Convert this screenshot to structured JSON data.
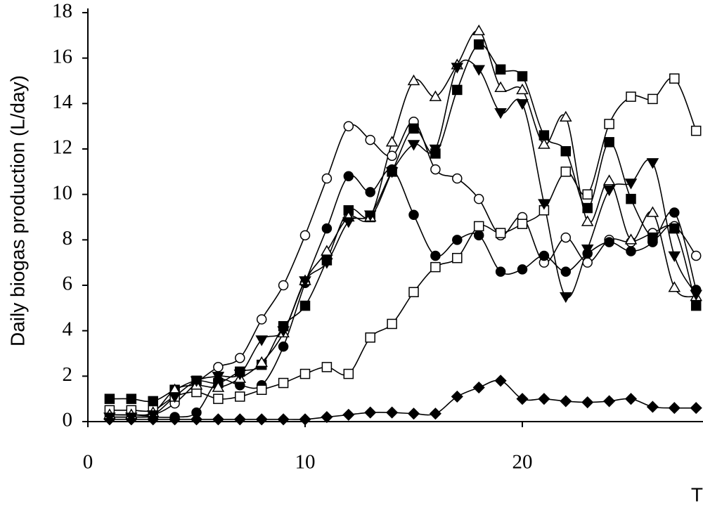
{
  "chart_data": {
    "type": "line",
    "y_label": "Daily biogas production (L/day)",
    "x_label": "T",
    "xlim": [
      0,
      28.3
    ],
    "xticks": [
      0,
      10,
      20
    ],
    "ylim": [
      0,
      18
    ],
    "yticks": [
      0,
      2,
      4,
      6,
      8,
      10,
      12,
      14,
      16,
      18
    ],
    "x": [
      1,
      2,
      3,
      4,
      5,
      6,
      7,
      8,
      9,
      10,
      11,
      12,
      13,
      14,
      15,
      16,
      17,
      18,
      19,
      20,
      21,
      22,
      23,
      24,
      25,
      26,
      27,
      28
    ],
    "series": [
      {
        "marker": "diamond",
        "color": "#000000",
        "marker_fill": "#000000",
        "values": [
          0.1,
          0.1,
          0.1,
          0.1,
          0.1,
          0.1,
          0.1,
          0.1,
          0.1,
          0.1,
          0.2,
          0.3,
          0.4,
          0.4,
          0.35,
          0.35,
          1.1,
          1.5,
          1.8,
          1.0,
          1.0,
          0.9,
          0.85,
          0.9,
          1.0,
          0.65,
          0.6,
          0.6
        ]
      },
      {
        "marker": "circle",
        "color": "#000000",
        "marker_fill": "#ffffff",
        "values": [
          0.3,
          0.3,
          0.3,
          0.8,
          1.7,
          2.4,
          2.8,
          4.5,
          6.0,
          8.2,
          10.7,
          13.0,
          12.4,
          11.7,
          13.2,
          11.1,
          10.7,
          9.8,
          8.2,
          9.0,
          7.0,
          8.1,
          7.0,
          8.0,
          7.9,
          8.3,
          8.6,
          7.3
        ]
      },
      {
        "marker": "circle",
        "color": "#000000",
        "marker_fill": "#000000",
        "values": [
          0.2,
          0.2,
          0.2,
          0.2,
          0.4,
          1.8,
          1.6,
          1.6,
          3.3,
          6.1,
          8.5,
          10.8,
          10.1,
          11.1,
          9.1,
          7.3,
          8.0,
          8.2,
          6.6,
          6.7,
          7.3,
          6.6,
          7.4,
          7.9,
          7.5,
          7.9,
          9.2,
          5.8
        ]
      },
      {
        "marker": "square",
        "color": "#000000",
        "marker_fill": "#ffffff",
        "values": [
          0.5,
          0.5,
          0.5,
          1.1,
          1.3,
          1.0,
          1.1,
          1.4,
          1.7,
          2.1,
          2.4,
          2.1,
          3.7,
          4.3,
          5.7,
          6.8,
          7.2,
          8.6,
          8.3,
          8.7,
          9.3,
          11.0,
          10.0,
          13.1,
          14.3,
          14.2,
          15.1,
          12.8
        ]
      },
      {
        "marker": "square",
        "color": "#000000",
        "marker_fill": "#000000",
        "values": [
          1.0,
          1.0,
          0.9,
          1.4,
          1.8,
          1.7,
          2.2,
          2.5,
          4.2,
          5.1,
          7.1,
          9.3,
          9.0,
          11.0,
          12.9,
          11.8,
          14.6,
          16.6,
          15.5,
          15.2,
          12.6,
          11.9,
          9.4,
          12.3,
          9.8,
          8.1,
          8.5,
          5.1
        ]
      },
      {
        "marker": "triangle-up",
        "color": "#000000",
        "marker_fill": "#ffffff",
        "values": [
          0.3,
          0.3,
          0.4,
          1.4,
          1.6,
          1.5,
          1.9,
          2.6,
          3.9,
          6.2,
          7.5,
          9.0,
          9.0,
          12.3,
          15.0,
          14.3,
          15.7,
          17.2,
          14.7,
          14.6,
          12.2,
          13.4,
          8.8,
          10.6,
          8.0,
          9.2,
          5.9,
          5.5
        ]
      },
      {
        "marker": "triangle-down",
        "color": "#000000",
        "marker_fill": "#000000",
        "values": [
          0.2,
          0.2,
          0.3,
          1.1,
          1.8,
          2.0,
          2.1,
          3.6,
          4.0,
          6.2,
          7.0,
          8.8,
          9.1,
          11.0,
          12.2,
          12.0,
          15.6,
          15.5,
          13.6,
          14.0,
          9.6,
          5.5,
          7.6,
          10.2,
          10.5,
          11.4,
          7.3,
          5.6
        ]
      }
    ]
  }
}
